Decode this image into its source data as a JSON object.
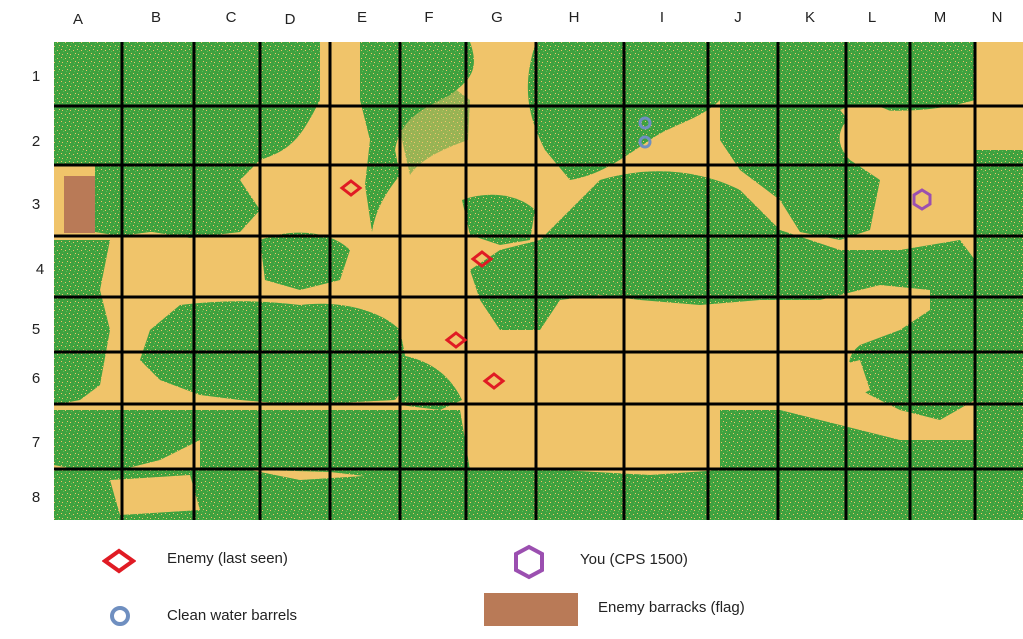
{
  "columns": [
    "A",
    "B",
    "C",
    "D",
    "E",
    "F",
    "G",
    "H",
    "I",
    "J",
    "K",
    "L",
    "M",
    "N"
  ],
  "rows": [
    "1",
    "2",
    "3",
    "4",
    "5",
    "6",
    "7",
    "8"
  ],
  "colors": {
    "sand": "#f0c46a",
    "vegetation": "#3fa13f",
    "grid": "#000000",
    "enemy": "#e01b24",
    "you": "#9b4fb0",
    "water": "#6f8fc0",
    "barracks": "#b97a57"
  },
  "markers": {
    "enemies": [
      {
        "cell": "E3"
      },
      {
        "cell": "G4"
      },
      {
        "cell": "F5"
      },
      {
        "cell": "G6"
      }
    ],
    "water_barrels": [
      {
        "cell": "I2"
      },
      {
        "cell": "I2"
      }
    ],
    "you": {
      "cell": "M3"
    },
    "barracks": {
      "cell": "A3"
    }
  },
  "legend": {
    "enemy": "Enemy (last seen)",
    "water": "Clean water barrels",
    "you": "You (CPS 1500)",
    "barracks": "Enemy barracks (flag)"
  }
}
